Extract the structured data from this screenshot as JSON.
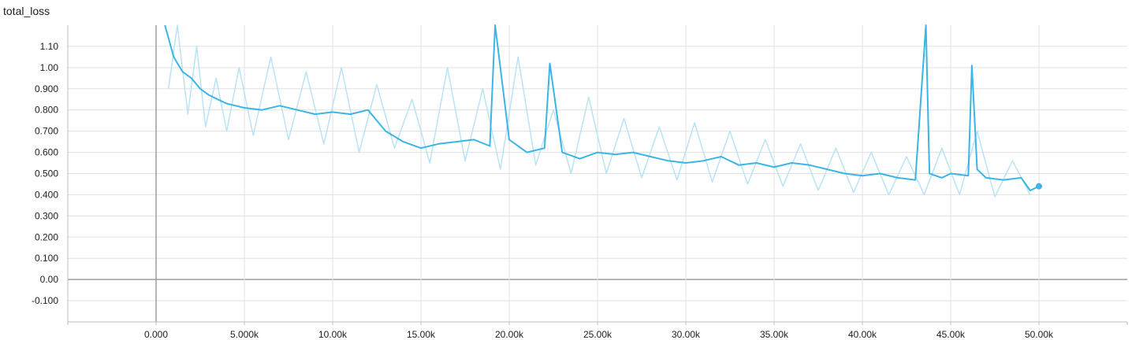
{
  "chart_data": {
    "type": "line",
    "title": "total_loss",
    "xlabel": "",
    "ylabel": "",
    "xlim": [
      -5000,
      55000
    ],
    "ylim": [
      -0.2,
      1.2
    ],
    "grid": true,
    "legend": "none",
    "x_ticks": [
      {
        "value": 0,
        "label": "0.000"
      },
      {
        "value": 5000,
        "label": "5.000k"
      },
      {
        "value": 10000,
        "label": "10.00k"
      },
      {
        "value": 15000,
        "label": "15.00k"
      },
      {
        "value": 20000,
        "label": "20.00k"
      },
      {
        "value": 25000,
        "label": "25.00k"
      },
      {
        "value": 30000,
        "label": "30.00k"
      },
      {
        "value": 35000,
        "label": "35.00k"
      },
      {
        "value": 40000,
        "label": "40.00k"
      },
      {
        "value": 45000,
        "label": "45.00k"
      },
      {
        "value": 50000,
        "label": "50.00k"
      }
    ],
    "y_ticks": [
      {
        "value": 1.1,
        "label": "1.10"
      },
      {
        "value": 1.0,
        "label": "1.00"
      },
      {
        "value": 0.9,
        "label": "0.900"
      },
      {
        "value": 0.8,
        "label": "0.800"
      },
      {
        "value": 0.7,
        "label": "0.700"
      },
      {
        "value": 0.6,
        "label": "0.600"
      },
      {
        "value": 0.5,
        "label": "0.500"
      },
      {
        "value": 0.4,
        "label": "0.400"
      },
      {
        "value": 0.3,
        "label": "0.300"
      },
      {
        "value": 0.2,
        "label": "0.200"
      },
      {
        "value": 0.1,
        "label": "0.100"
      },
      {
        "value": 0.0,
        "label": "0.00"
      },
      {
        "value": -0.1,
        "label": "-0.100"
      }
    ],
    "series": [
      {
        "style": "smoothed",
        "color": "#3cb5e6",
        "x": [
          500,
          1000,
          1500,
          2000,
          2500,
          3000,
          3500,
          4000,
          4500,
          5000,
          6000,
          7000,
          8000,
          9000,
          10000,
          11000,
          12000,
          13000,
          14000,
          15000,
          16000,
          17000,
          18000,
          18900,
          19200,
          20000,
          21000,
          22000,
          22300,
          23000,
          24000,
          25000,
          26000,
          27000,
          28000,
          29000,
          30000,
          31000,
          32000,
          33000,
          34000,
          35000,
          36000,
          37000,
          38000,
          39000,
          40000,
          41000,
          42000,
          43000,
          43600,
          43800,
          44500,
          45000,
          46000,
          46200,
          46500,
          47000,
          48000,
          49000,
          49500,
          50000
        ],
        "y": [
          1.2,
          1.05,
          0.98,
          0.95,
          0.9,
          0.87,
          0.85,
          0.83,
          0.82,
          0.81,
          0.8,
          0.82,
          0.8,
          0.78,
          0.79,
          0.78,
          0.8,
          0.7,
          0.65,
          0.62,
          0.64,
          0.65,
          0.66,
          0.63,
          1.2,
          0.66,
          0.6,
          0.62,
          1.02,
          0.6,
          0.57,
          0.6,
          0.59,
          0.6,
          0.58,
          0.56,
          0.55,
          0.56,
          0.58,
          0.54,
          0.55,
          0.53,
          0.55,
          0.54,
          0.52,
          0.5,
          0.49,
          0.5,
          0.48,
          0.47,
          1.2,
          0.5,
          0.48,
          0.5,
          0.49,
          1.01,
          0.52,
          0.48,
          0.47,
          0.48,
          0.42,
          0.44
        ]
      },
      {
        "style": "raw",
        "color": "#b9e3f6",
        "x": [
          700,
          1200,
          1800,
          2300,
          2800,
          3400,
          4000,
          4700,
          5500,
          6500,
          7500,
          8500,
          9500,
          10500,
          11500,
          12500,
          13500,
          14500,
          15500,
          16500,
          17500,
          18500,
          19500,
          20500,
          21500,
          22500,
          23500,
          24500,
          25500,
          26500,
          27500,
          28500,
          29500,
          30500,
          31500,
          32500,
          33500,
          34500,
          35500,
          36500,
          37500,
          38500,
          39500,
          40500,
          41500,
          42500,
          43500,
          44500,
          45500,
          46500,
          47500,
          48500,
          49500
        ],
        "y": [
          0.9,
          1.2,
          0.78,
          1.1,
          0.72,
          0.95,
          0.7,
          1.0,
          0.68,
          1.05,
          0.66,
          0.98,
          0.64,
          1.0,
          0.6,
          0.92,
          0.62,
          0.85,
          0.55,
          1.0,
          0.56,
          0.9,
          0.52,
          1.05,
          0.54,
          0.8,
          0.5,
          0.86,
          0.5,
          0.76,
          0.48,
          0.72,
          0.47,
          0.74,
          0.46,
          0.7,
          0.45,
          0.66,
          0.44,
          0.64,
          0.42,
          0.62,
          0.41,
          0.6,
          0.4,
          0.58,
          0.4,
          0.62,
          0.4,
          0.7,
          0.39,
          0.56,
          0.4
        ]
      }
    ]
  }
}
